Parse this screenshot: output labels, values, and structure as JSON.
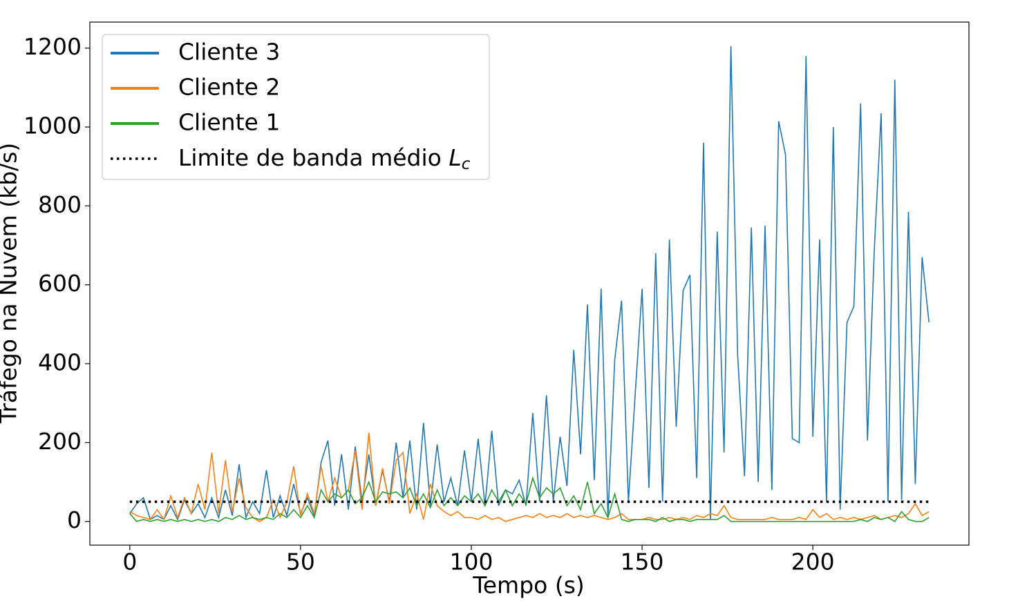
{
  "chart_data": {
    "type": "line",
    "x_label": "Tempo (s)",
    "y_label": "Tráfego na Nuvem (kb/s)",
    "x": [
      0,
      2,
      4,
      6,
      8,
      10,
      12,
      14,
      16,
      18,
      20,
      22,
      24,
      26,
      28,
      30,
      32,
      34,
      36,
      38,
      40,
      42,
      44,
      46,
      48,
      50,
      52,
      54,
      56,
      58,
      60,
      62,
      64,
      66,
      68,
      70,
      72,
      74,
      76,
      78,
      80,
      82,
      84,
      86,
      88,
      90,
      92,
      94,
      96,
      98,
      100,
      102,
      104,
      106,
      108,
      110,
      112,
      114,
      116,
      118,
      120,
      122,
      124,
      126,
      128,
      130,
      132,
      134,
      136,
      138,
      140,
      142,
      144,
      146,
      148,
      150,
      152,
      154,
      156,
      158,
      160,
      162,
      164,
      166,
      168,
      170,
      172,
      174,
      176,
      178,
      180,
      182,
      184,
      186,
      188,
      190,
      192,
      194,
      196,
      198,
      200,
      202,
      204,
      206,
      208,
      210,
      212,
      214,
      216,
      218,
      220,
      222,
      224,
      226,
      228,
      230,
      232,
      234
    ],
    "series": [
      {
        "name": "Cliente 3",
        "color": "#1f77b4",
        "values": [
          20,
          45,
          60,
          5,
          15,
          5,
          40,
          5,
          55,
          20,
          45,
          10,
          60,
          10,
          80,
          15,
          145,
          10,
          50,
          20,
          130,
          10,
          65,
          15,
          95,
          20,
          60,
          15,
          150,
          205,
          40,
          170,
          30,
          190,
          50,
          170,
          40,
          130,
          50,
          200,
          60,
          205,
          30,
          250,
          40,
          195,
          50,
          110,
          40,
          180,
          50,
          210,
          40,
          230,
          40,
          80,
          70,
          105,
          40,
          275,
          50,
          320,
          50,
          215,
          90,
          435,
          170,
          550,
          105,
          590,
          10,
          410,
          560,
          50,
          325,
          590,
          85,
          680,
          50,
          715,
          240,
          585,
          625,
          110,
          960,
          5,
          735,
          175,
          1205,
          420,
          115,
          745,
          100,
          750,
          80,
          1015,
          930,
          210,
          200,
          1180,
          215,
          715,
          50,
          1000,
          30,
          505,
          545,
          1060,
          205,
          690,
          1035,
          50,
          1120,
          55,
          785,
          95,
          670,
          505
        ]
      },
      {
        "name": "Cliente 2",
        "color": "#ff7f0e",
        "values": [
          25,
          15,
          10,
          5,
          30,
          5,
          65,
          10,
          60,
          20,
          95,
          30,
          175,
          20,
          155,
          25,
          110,
          35,
          10,
          0,
          10,
          55,
          10,
          50,
          140,
          15,
          70,
          20,
          140,
          50,
          110,
          60,
          80,
          180,
          30,
          225,
          40,
          135,
          45,
          155,
          175,
          20,
          70,
          5,
          95,
          40,
          25,
          15,
          25,
          10,
          10,
          5,
          15,
          5,
          10,
          0,
          5,
          10,
          15,
          10,
          20,
          10,
          15,
          10,
          20,
          10,
          15,
          10,
          15,
          10,
          5,
          10,
          20,
          5,
          5,
          5,
          10,
          5,
          5,
          10,
          5,
          10,
          5,
          15,
          10,
          20,
          15,
          40,
          10,
          5,
          5,
          5,
          5,
          5,
          10,
          5,
          5,
          5,
          10,
          5,
          30,
          10,
          20,
          5,
          10,
          5,
          10,
          5,
          10,
          15,
          5,
          10,
          15,
          10,
          20,
          45,
          15,
          25
        ]
      },
      {
        "name": "Cliente 1",
        "color": "#2ca02c",
        "values": [
          20,
          0,
          5,
          0,
          5,
          0,
          5,
          0,
          5,
          0,
          5,
          0,
          5,
          0,
          10,
          5,
          15,
          5,
          10,
          5,
          10,
          5,
          20,
          10,
          30,
          10,
          40,
          10,
          80,
          50,
          70,
          60,
          80,
          45,
          60,
          100,
          50,
          75,
          70,
          75,
          60,
          85,
          40,
          70,
          35,
          80,
          40,
          60,
          40,
          65,
          50,
          70,
          40,
          80,
          50,
          80,
          40,
          70,
          45,
          110,
          60,
          85,
          70,
          85,
          40,
          65,
          30,
          100,
          20,
          45,
          10,
          70,
          5,
          0,
          5,
          5,
          5,
          0,
          10,
          0,
          5,
          5,
          0,
          5,
          5,
          5,
          5,
          15,
          0,
          0,
          0,
          0,
          0,
          0,
          0,
          0,
          0,
          0,
          0,
          0,
          0,
          0,
          0,
          0,
          0,
          0,
          0,
          5,
          0,
          10,
          5,
          10,
          0,
          25,
          5,
          0,
          0,
          10
        ]
      },
      {
        "name": "Limite de banda médio Lc",
        "color": "#000000",
        "dash": "dotted",
        "x": [
          0,
          234
        ],
        "values": [
          50,
          50
        ]
      }
    ],
    "xlim": [
      -11.7,
      245.7
    ],
    "xticks": [
      0,
      50,
      100,
      150,
      200
    ],
    "ylim": [
      -60,
      1266
    ],
    "yticks": [
      0,
      200,
      400,
      600,
      800,
      1000,
      1200
    ],
    "legend": "upper left",
    "grid": false
  }
}
